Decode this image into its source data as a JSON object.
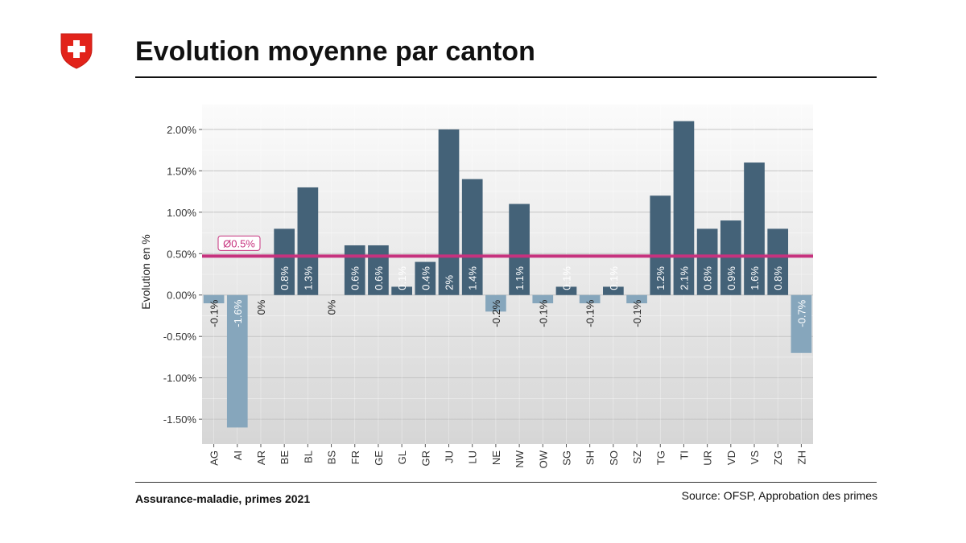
{
  "header": {
    "title": "Evolution moyenne par canton"
  },
  "footer": {
    "left": "Assurance-maladie, primes 2021",
    "right": "Source: OFSP, Approbation des primes"
  },
  "colors": {
    "positive": "#446278",
    "negative": "#86a6bc",
    "average": "#c6327e",
    "swiss_red": "#e2231a"
  },
  "chart_data": {
    "type": "bar",
    "ylabel": "Evolution en %",
    "ylim": [
      -1.8,
      2.3
    ],
    "yticks": [
      -1.5,
      -1.0,
      -0.5,
      0.0,
      0.5,
      1.0,
      1.5,
      2.0
    ],
    "ytick_labels": [
      "-1.50%",
      "-1.00%",
      "-0.50%",
      "0.00%",
      "0.50%",
      "1.00%",
      "1.50%",
      "2.00%"
    ],
    "grid": true,
    "categories": [
      "AG",
      "AI",
      "AR",
      "BE",
      "BL",
      "BS",
      "FR",
      "GE",
      "GL",
      "GR",
      "JU",
      "LU",
      "NE",
      "NW",
      "OW",
      "SG",
      "SH",
      "SO",
      "SZ",
      "TG",
      "TI",
      "UR",
      "VD",
      "VS",
      "ZG",
      "ZH"
    ],
    "values": [
      -0.1,
      -1.6,
      0,
      0.8,
      1.3,
      0,
      0.6,
      0.6,
      0.1,
      0.4,
      2.0,
      1.4,
      -0.2,
      1.1,
      -0.1,
      0.1,
      -0.1,
      0.1,
      -0.1,
      1.2,
      2.1,
      0.8,
      0.9,
      1.6,
      0.8,
      -0.7
    ],
    "data_labels": [
      "-0.1%",
      "-1.6%",
      "0%",
      "0.8%",
      "1.3%",
      "0%",
      "0.6%",
      "0.6%",
      "0.1%",
      "0.4%",
      "2%",
      "1.4%",
      "-0.2%",
      "1.1%",
      "-0.1%",
      "0.1%",
      "-0.1%",
      "0.1%",
      "-0.1%",
      "1.2%",
      "2.1%",
      "0.8%",
      "0.9%",
      "1.6%",
      "0.8%",
      "-0.7%"
    ],
    "average": {
      "value": 0.47,
      "label": "Ø0.5%"
    }
  }
}
